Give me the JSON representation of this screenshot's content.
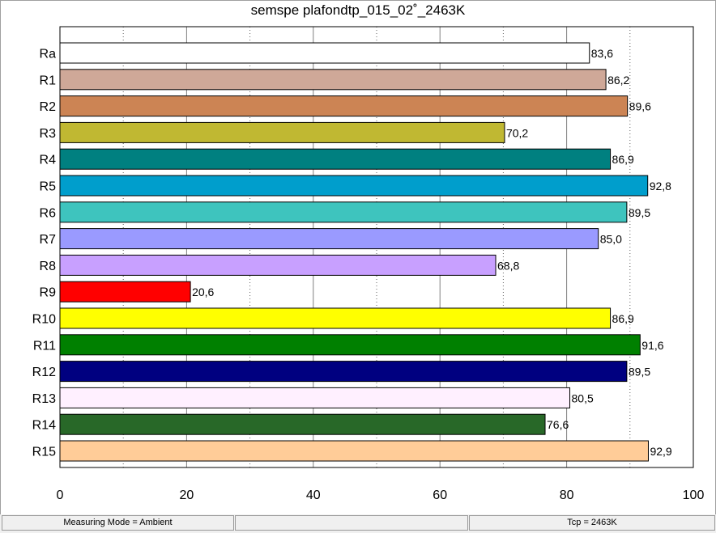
{
  "chart_data": {
    "type": "bar",
    "orientation": "horizontal",
    "title": "semspe plafondtp_015_02˚_2463K",
    "categories": [
      "Ra",
      "R1",
      "R2",
      "R3",
      "R4",
      "R5",
      "R6",
      "R7",
      "R8",
      "R9",
      "R10",
      "R11",
      "R12",
      "R13",
      "R14",
      "R15"
    ],
    "values": [
      83.6,
      86.2,
      89.6,
      70.2,
      86.9,
      92.8,
      89.5,
      85.0,
      68.8,
      20.6,
      86.9,
      91.6,
      89.5,
      80.5,
      76.6,
      92.9
    ],
    "value_labels": [
      "83,6",
      "86,2",
      "89,6",
      "70,2",
      "86,9",
      "92,8",
      "89,5",
      "85,0",
      "68,8",
      "20,6",
      "86,9",
      "91,6",
      "89,5",
      "80,5",
      "76,6",
      "92,9"
    ],
    "colors": [
      "#ffffff",
      "#cfa898",
      "#cc8454",
      "#c0b832",
      "#008080",
      "#009ecc",
      "#3ec4be",
      "#9a9aff",
      "#c8a0ff",
      "#ff0000",
      "#ffff00",
      "#008000",
      "#000080",
      "#fff0ff",
      "#286828",
      "#ffcc98"
    ],
    "xlim": [
      0,
      100
    ],
    "x_ticks": [
      0,
      20,
      40,
      60,
      80,
      100
    ],
    "x_tick_labels": [
      "0",
      "20",
      "40",
      "60",
      "80",
      "100"
    ],
    "grid": "vertical-dotted",
    "legend": "none"
  },
  "status_bar": {
    "measuring_mode": "Measuring Mode = Ambient",
    "middle": "",
    "tcp": "Tcp = 2463K"
  }
}
